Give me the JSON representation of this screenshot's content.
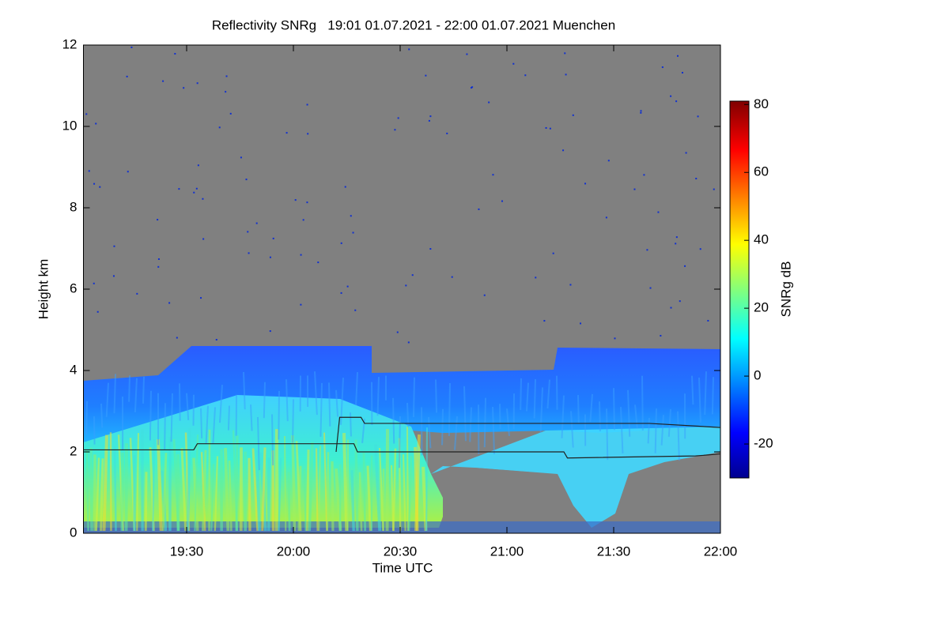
{
  "chart_data": {
    "type": "time-height",
    "title": "Reflectivity SNRg   19:01 01.07.2021 - 22:00 01.07.2021 Muenchen",
    "x_label": "Time UTC",
    "y_label": "Height km",
    "colorbar_label": "SNRg dB",
    "colormap": "jet",
    "xlim": [
      1141,
      1320
    ],
    "xticks": [
      {
        "value": 1170,
        "label": "19:30"
      },
      {
        "value": 1200,
        "label": "20:00"
      },
      {
        "value": 1230,
        "label": "20:30"
      },
      {
        "value": 1260,
        "label": "21:00"
      },
      {
        "value": 1290,
        "label": "21:30"
      },
      {
        "value": 1320,
        "label": "22:00"
      }
    ],
    "ylim": [
      0,
      12
    ],
    "yticks": [
      0,
      2,
      4,
      6,
      8,
      10,
      12
    ],
    "clim": [
      -30,
      81
    ],
    "cticks": [
      -20,
      0,
      20,
      40,
      60,
      80
    ],
    "series": [
      {
        "color": "#202020",
        "x": [
          1141,
          1172,
          1173,
          1217,
          1218,
          1276,
          1277,
          1313,
          1320
        ],
        "values": [
          2.05,
          2.05,
          2.2,
          2.2,
          2.0,
          2.0,
          1.85,
          1.9,
          1.95
        ]
      },
      {
        "color": "#202020",
        "x": [
          1212,
          1213,
          1219,
          1220,
          1300,
          1320
        ],
        "values": [
          2.0,
          2.85,
          2.85,
          2.7,
          2.7,
          2.6
        ]
      }
    ]
  }
}
